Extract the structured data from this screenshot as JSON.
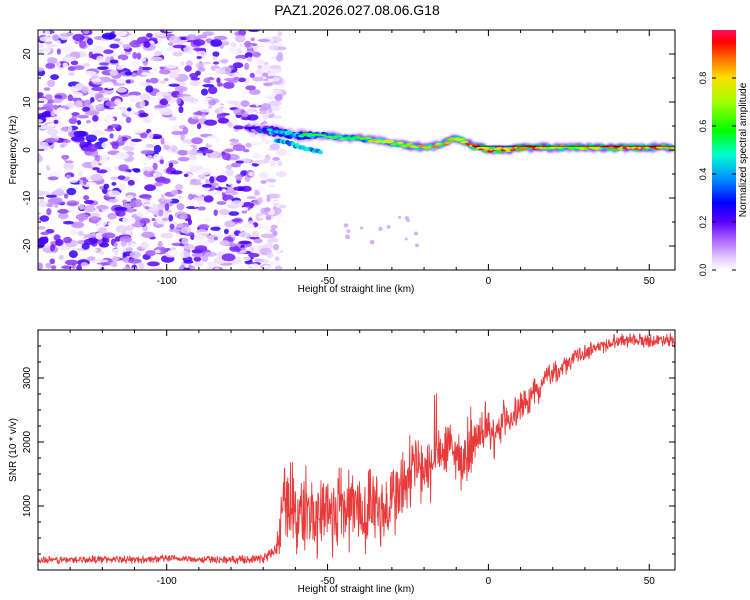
{
  "figure": {
    "title": "PAZ1.2026.027.08.06.G18"
  },
  "chart_data": [
    {
      "type": "heatmap",
      "title": "PAZ1.2026.027.08.06.G18",
      "xlabel": "Height of straight line (km)",
      "ylabel": "Frequency (Hz)",
      "xlim": [
        -140,
        58
      ],
      "ylim": [
        -25,
        25
      ],
      "xticks": [
        -100,
        -50,
        0,
        50
      ],
      "yticks": [
        -20,
        -10,
        0,
        10,
        20
      ],
      "xtick_labels": [
        "-100",
        "-50",
        "0",
        "50"
      ],
      "ytick_labels": [
        "-20",
        "-10",
        "0",
        "10",
        "20"
      ],
      "noise_region": {
        "x_from": -140,
        "x_to": -68,
        "amplitude_range": [
          0.0,
          0.25
        ]
      },
      "ridge": {
        "description": "Peak amplitude along frequency ridge",
        "x": [
          -75,
          -68,
          -64,
          -60,
          -55,
          -50,
          -45,
          -40,
          -35,
          -30,
          -25,
          -20,
          -15,
          -10,
          -5,
          0,
          5,
          10,
          15,
          20,
          25,
          30,
          35,
          40,
          45,
          50,
          55,
          58
        ],
        "freq": [
          4.5,
          4.0,
          3.5,
          3.0,
          3.0,
          3.0,
          2.5,
          2.5,
          2.0,
          1.5,
          1.0,
          0.5,
          1.0,
          2.5,
          1.0,
          0.0,
          0.0,
          0.5,
          0.5,
          0.5,
          0.5,
          0.5,
          0.5,
          0.5,
          0.5,
          0.5,
          0.5,
          0.5
        ],
        "amplitude": [
          0.15,
          0.35,
          0.45,
          0.4,
          0.5,
          0.55,
          0.6,
          0.65,
          0.7,
          0.7,
          0.75,
          0.8,
          0.75,
          0.8,
          0.85,
          0.9,
          0.85,
          0.9,
          0.85,
          0.75,
          0.7,
          0.75,
          0.8,
          0.85,
          0.9,
          0.85,
          0.8,
          0.8
        ]
      },
      "colorbar": {
        "label": "Normalized spectral amplitude",
        "range": [
          0.0,
          1.0
        ],
        "ticks": [
          0.0,
          0.2,
          0.4,
          0.6,
          0.8
        ],
        "tick_labels": [
          "0.0",
          "0.2",
          "0.4",
          "0.6",
          "0.8"
        ]
      }
    },
    {
      "type": "line",
      "xlabel": "Height of straight line (km)",
      "ylabel": "SNR (10 * v/v)",
      "xlim": [
        -140,
        58
      ],
      "ylim": [
        0,
        3750
      ],
      "xticks": [
        -100,
        -50,
        0,
        50
      ],
      "yticks": [
        1000,
        2000,
        3000
      ],
      "xtick_labels": [
        "-100",
        "-50",
        "0",
        "50"
      ],
      "ytick_labels": [
        "1000",
        "2000",
        "3000"
      ],
      "series": [
        {
          "name": "SNR",
          "color": "#e83a3a",
          "x": [
            -140,
            -130,
            -120,
            -110,
            -100,
            -90,
            -80,
            -70,
            -66,
            -64,
            -62,
            -60,
            -58,
            -56,
            -54,
            -52,
            -50,
            -48,
            -46,
            -44,
            -42,
            -40,
            -38,
            -36,
            -34,
            -32,
            -30,
            -28,
            -26,
            -24,
            -22,
            -20,
            -18,
            -16,
            -14,
            -12,
            -10,
            -8,
            -6,
            -4,
            -2,
            0,
            2,
            4,
            6,
            8,
            10,
            12,
            14,
            16,
            18,
            20,
            22,
            24,
            26,
            28,
            30,
            32,
            34,
            36,
            38,
            40,
            42,
            44,
            46,
            48,
            50,
            52,
            54,
            56,
            58
          ],
          "y": [
            150,
            160,
            170,
            160,
            180,
            170,
            160,
            180,
            300,
            900,
            1200,
            800,
            900,
            1000,
            700,
            1000,
            1000,
            800,
            1100,
            900,
            1100,
            900,
            800,
            1200,
            950,
            900,
            1100,
            1200,
            1300,
            1500,
            1700,
            1400,
            1600,
            1800,
            1900,
            1900,
            1800,
            1700,
            1800,
            2000,
            2100,
            2200,
            2000,
            2300,
            2400,
            2400,
            2550,
            2600,
            2800,
            2800,
            3050,
            3100,
            3100,
            3200,
            3300,
            3350,
            3400,
            3450,
            3500,
            3500,
            3550,
            3600,
            3580,
            3620,
            3600,
            3580,
            3600,
            3560,
            3620,
            3600,
            3580
          ],
          "noise_amp": [
            60,
            60,
            60,
            60,
            60,
            60,
            60,
            70,
            150,
            650,
            650,
            700,
            650,
            650,
            600,
            650,
            700,
            700,
            700,
            700,
            700,
            650,
            600,
            650,
            650,
            600,
            600,
            650,
            700,
            650,
            600,
            550,
            550,
            500,
            500,
            450,
            450,
            400,
            400,
            350,
            350,
            300,
            300,
            300,
            300,
            280,
            250,
            250,
            200,
            200,
            180,
            160,
            150,
            150,
            140,
            130,
            130,
            120,
            120,
            120,
            110,
            110,
            110,
            110,
            110,
            110,
            110,
            110,
            110,
            110,
            110
          ]
        }
      ]
    }
  ]
}
